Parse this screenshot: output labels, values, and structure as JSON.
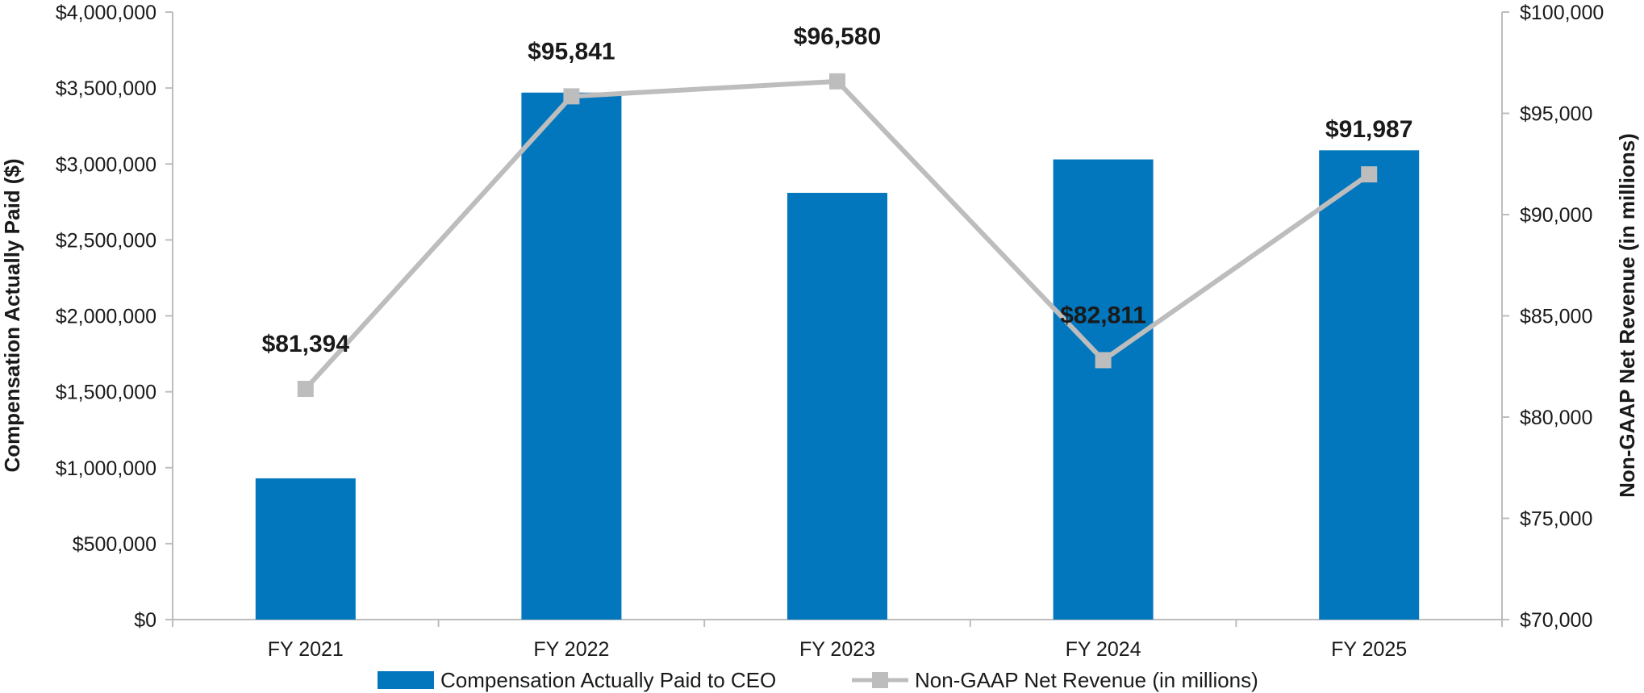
{
  "chart_data": {
    "type": "bar",
    "categories": [
      "FY 2021",
      "FY 2022",
      "FY 2023",
      "FY 2024",
      "FY 2025"
    ],
    "series": [
      {
        "name": "Compensation Actually Paid to CEO",
        "kind": "bar",
        "axis": "left",
        "color": "#0277bd",
        "values": [
          930000,
          3470000,
          2810000,
          3030000,
          3090000
        ]
      },
      {
        "name": "Non-GAAP Net Revenue (in millions)",
        "kind": "line",
        "axis": "right",
        "color": "#bdbdbd",
        "marker": "square",
        "values": [
          81394,
          95841,
          96580,
          82811,
          91987
        ],
        "labels": [
          "$81,394",
          "$95,841",
          "$96,580",
          "$82,811",
          "$91,987"
        ]
      }
    ],
    "ylabel": "Compensation Actually Paid ($)",
    "ylim": [
      0,
      4000000
    ],
    "yticks": [
      0,
      500000,
      1000000,
      1500000,
      2000000,
      2500000,
      3000000,
      3500000,
      4000000
    ],
    "ytick_labels": [
      "$0",
      "$500,000",
      "$1,000,000",
      "$1,500,000",
      "$2,000,000",
      "$2,500,000",
      "$3,000,000",
      "$3,500,000",
      "$4,000,000"
    ],
    "y2label": "Non-GAAP Net Revenue (in millions)",
    "y2lim": [
      70000,
      100000
    ],
    "y2ticks": [
      70000,
      75000,
      80000,
      85000,
      90000,
      95000,
      100000
    ],
    "y2tick_labels": [
      "$70,000",
      "$75,000",
      "$80,000",
      "$85,000",
      "$90,000",
      "$95,000",
      "$100,000"
    ],
    "grid": false,
    "legend": "bottom-center"
  }
}
